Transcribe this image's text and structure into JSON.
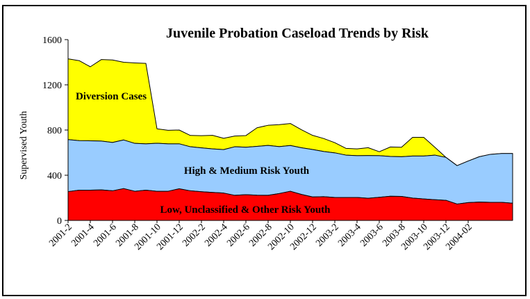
{
  "chart_data": {
    "type": "area",
    "title": "Juvenile Probation Caseload Trends by Risk",
    "ylabel": "Supervised Youth",
    "ylim": [
      0,
      1600
    ],
    "yticks": [
      0,
      400,
      800,
      1200,
      1600
    ],
    "stacked": true,
    "tick_labels": [
      "2001-2",
      "2001-4",
      "2001-6",
      "2001-8",
      "2001-10",
      "2001-12",
      "2002-2",
      "2002-4",
      "2002-6",
      "2002-8",
      "2002-10",
      "2002-12",
      "2003-2",
      "2003-4",
      "2003-6",
      "2003-8",
      "2003-10",
      "2003-12",
      "2004-02"
    ],
    "tick_steps": 2,
    "series": [
      {
        "name": "Low, Unclassified & Other Risk Youth",
        "color": "#ff0000",
        "values": [
          255,
          268,
          268,
          270,
          262,
          282,
          258,
          268,
          258,
          258,
          280,
          262,
          254,
          248,
          242,
          222,
          228,
          223,
          222,
          238,
          258,
          230,
          208,
          210,
          203,
          203,
          203,
          196,
          205,
          214,
          212,
          198,
          190,
          183,
          178,
          145,
          158,
          162,
          160,
          160,
          152
        ]
      },
      {
        "name": "High & Medium Risk Youth",
        "color": "#99ccff",
        "values": [
          460,
          438,
          437,
          432,
          428,
          430,
          424,
          410,
          425,
          420,
          398,
          390,
          388,
          385,
          385,
          430,
          420,
          432,
          442,
          415,
          405,
          413,
          420,
          400,
          395,
          375,
          370,
          378,
          368,
          352,
          352,
          372,
          380,
          395,
          380,
          340,
          368,
          402,
          425,
          432,
          440
        ]
      },
      {
        "name": "Diversion Cases",
        "color": "#ffff00",
        "values": [
          715,
          708,
          655,
          722,
          730,
          688,
          712,
          712,
          128,
          120,
          122,
          100,
          108,
          120,
          100,
          95,
          103,
          165,
          178,
          195,
          195,
          160,
          125,
          115,
          90,
          60,
          60,
          70,
          35,
          84,
          84,
          165,
          165,
          70,
          0,
          0,
          0,
          0,
          0,
          0,
          0
        ]
      }
    ],
    "area_labels": [
      "Diversion Cases",
      "High & Medium Risk Youth",
      "Low, Unclassified & Other Risk Youth"
    ],
    "grid": false,
    "legend": "none"
  }
}
